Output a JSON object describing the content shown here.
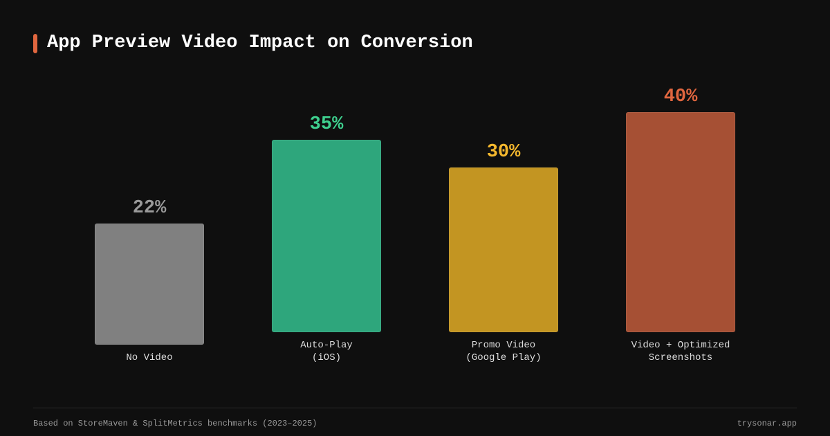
{
  "chart_data": {
    "type": "bar",
    "title": "App Preview Video Impact on Conversion",
    "categories": [
      "No Video",
      "Auto-Play\n(iOS)",
      "Promo Video\n(Google Play)",
      "Video + Optimized\nScreenshots"
    ],
    "values": [
      22,
      35,
      30,
      40
    ],
    "value_labels": [
      "22%",
      "35%",
      "30%",
      "40%"
    ],
    "colors": [
      "#808080",
      "#2ea67c",
      "#c39522",
      "#a65034"
    ],
    "label_colors": [
      "#9a9a9a",
      "#3ecf8e",
      "#f5b82e",
      "#e0663f"
    ],
    "source": "Based on StoreMaven & SplitMetrics benchmarks (2023–2025)",
    "site": "trysonar.app"
  }
}
